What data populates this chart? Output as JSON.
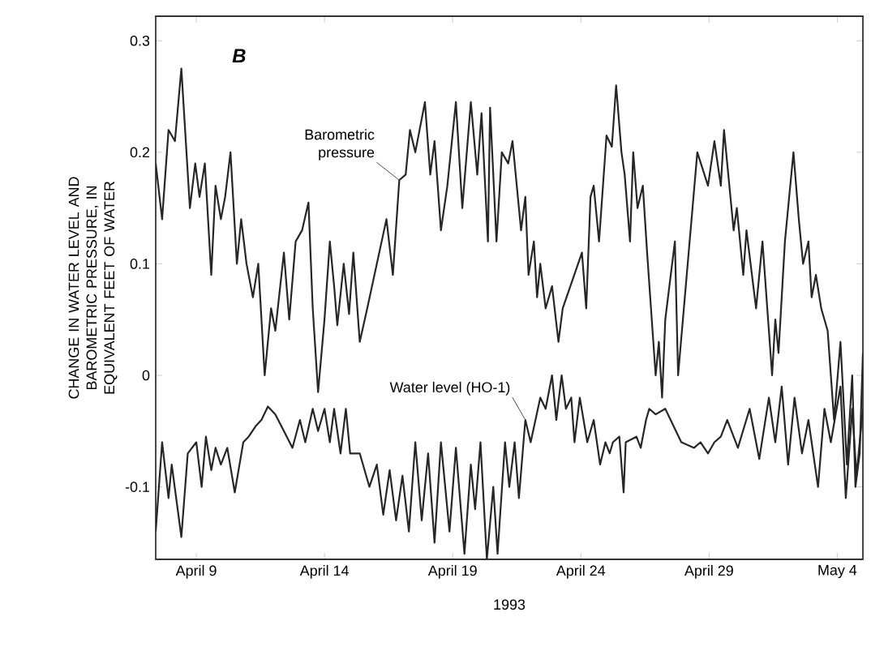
{
  "chart_data": {
    "type": "line",
    "xlabel": "1993",
    "ylabel": "CHANGE IN WATER LEVEL AND BAROMETRIC PRESSURE, IN EQUIVALENT FEET OF WATER",
    "xlim": [
      "1993-04-07T10:00",
      "1993-05-05T00:00"
    ],
    "ylim": [
      -0.165,
      0.322
    ],
    "xticks": [
      {
        "value": "1993-04-09",
        "label": "April 9"
      },
      {
        "value": "1993-04-14",
        "label": "April 14"
      },
      {
        "value": "1993-04-19",
        "label": "April 19"
      },
      {
        "value": "1993-04-24",
        "label": "April 24"
      },
      {
        "value": "1993-04-29",
        "label": "April 29"
      },
      {
        "value": "1993-05-04",
        "label": "May 4"
      }
    ],
    "yticks": [
      -0.1,
      0,
      0.1,
      0.2,
      0.3
    ],
    "marker": "none",
    "line_style": "solid",
    "annotations": [
      "B",
      {
        "text": "Barometric pressure",
        "x": "1993-04-16T22:00",
        "y": 0.175
      },
      {
        "text": "Water level (HO-1)",
        "x": "1993-04-21T20:00",
        "y": -0.04
      }
    ],
    "series": [
      {
        "color": "#262626",
        "x": [
          "1993-04-07T10:00",
          "1993-04-07T16:00",
          "1993-04-07T22:00",
          "1993-04-08T04:00",
          "1993-04-08T10:00",
          "1993-04-08T18:00",
          "1993-04-08T23:00",
          "1993-04-09T03:00",
          "1993-04-09T08:00",
          "1993-04-09T14:00",
          "1993-04-09T18:00",
          "1993-04-09T23:00",
          "1993-04-10T03:00",
          "1993-04-10T08:00",
          "1993-04-10T14:00",
          "1993-04-10T18:00",
          "1993-04-10T23:00",
          "1993-04-11T05:00",
          "1993-04-11T10:00",
          "1993-04-11T16:00",
          "1993-04-11T22:00",
          "1993-04-12T02:00",
          "1993-04-12T10:00",
          "1993-04-12T15:00",
          "1993-04-12T21:00",
          "1993-04-13T03:00",
          "1993-04-13T09:00",
          "1993-04-13T13:00",
          "1993-04-13T18:00",
          "1993-04-14T00:00",
          "1993-04-14T05:00",
          "1993-04-14T09:00",
          "1993-04-14T12:00",
          "1993-04-14T18:00",
          "1993-04-14T23:00",
          "1993-04-15T03:00",
          "1993-04-15T09:00",
          "1993-04-15T16:00",
          "1993-04-16T10:00",
          "1993-04-16T16:00",
          "1993-04-16T22:00",
          "1993-04-17T04:00",
          "1993-04-17T08:00",
          "1993-04-17T13:00",
          "1993-04-17T22:00",
          "1993-04-18T03:00",
          "1993-04-18T07:00",
          "1993-04-18T13:00",
          "1993-04-18T19:00",
          "1993-04-19T03:00",
          "1993-04-19T09:00",
          "1993-04-19T17:00",
          "1993-04-19T23:00",
          "1993-04-20T03:00",
          "1993-04-20T09:00",
          "1993-04-20T11:00",
          "1993-04-20T17:00",
          "1993-04-20T22:00",
          "1993-04-21T04:00",
          "1993-04-21T08:00",
          "1993-04-21T16:00",
          "1993-04-21T20:00",
          "1993-04-21T23:00",
          "1993-04-22T04:00",
          "1993-04-22T07:00",
          "1993-04-22T10:00",
          "1993-04-22T15:00",
          "1993-04-22T21:00",
          "1993-04-23T03:00",
          "1993-04-23T07:00",
          "1993-04-24T01:00",
          "1993-04-24T05:00",
          "1993-04-24T09:00",
          "1993-04-24T12:00",
          "1993-04-24T17:00",
          "1993-04-25T00:00",
          "1993-04-25T05:00",
          "1993-04-25T09:00",
          "1993-04-25T14:00",
          "1993-04-25T17:00",
          "1993-04-25T22:00",
          "1993-04-26T01:00",
          "1993-04-26T05:00",
          "1993-04-26T10:00",
          "1993-04-26T14:00",
          "1993-04-26T22:00",
          "1993-04-27T01:00",
          "1993-04-27T04:00",
          "1993-04-27T07:00",
          "1993-04-27T16:00",
          "1993-04-27T19:00",
          "1993-04-28T04:00",
          "1993-04-28T13:00",
          "1993-04-28T23:00",
          "1993-04-29T05:00",
          "1993-04-29T11:00",
          "1993-04-29T14:00",
          "1993-04-29T23:00",
          "1993-04-30T02:00",
          "1993-04-30T08:00",
          "1993-04-30T11:00",
          "1993-04-30T20:00",
          "1993-05-01T02:00",
          "1993-05-01T11:00",
          "1993-05-01T14:00",
          "1993-05-01T17:00",
          "1993-05-01T23:00",
          "1993-05-02T07:00",
          "1993-05-02T12:00",
          "1993-05-02T16:00",
          "1993-05-02T21:00",
          "1993-05-03T00:00",
          "1993-05-03T04:00",
          "1993-05-03T09:00",
          "1993-05-03T15:00",
          "1993-05-03T21:00",
          "1993-05-04T03:00",
          "1993-05-04T09:00",
          "1993-05-04T14:00",
          "1993-05-04T17:00",
          "1993-05-04T21:00",
          "1993-05-05T00:00"
        ],
        "values": [
          0.19,
          0.14,
          0.22,
          0.21,
          0.275,
          0.15,
          0.19,
          0.16,
          0.19,
          0.09,
          0.17,
          0.14,
          0.16,
          0.2,
          0.1,
          0.14,
          0.1,
          0.07,
          0.1,
          0.0,
          0.06,
          0.04,
          0.11,
          0.05,
          0.12,
          0.13,
          0.155,
          0.06,
          -0.015,
          0.05,
          0.12,
          0.08,
          0.045,
          0.1,
          0.055,
          0.11,
          0.03,
          0.06,
          0.14,
          0.09,
          0.175,
          0.18,
          0.22,
          0.2,
          0.245,
          0.18,
          0.21,
          0.13,
          0.17,
          0.245,
          0.15,
          0.245,
          0.18,
          0.235,
          0.12,
          0.24,
          0.12,
          0.2,
          0.19,
          0.21,
          0.13,
          0.16,
          0.09,
          0.12,
          0.07,
          0.1,
          0.06,
          0.08,
          0.03,
          0.06,
          0.11,
          0.06,
          0.16,
          0.17,
          0.12,
          0.215,
          0.205,
          0.26,
          0.2,
          0.18,
          0.12,
          0.2,
          0.15,
          0.17,
          0.11,
          0.0,
          0.03,
          -0.02,
          0.05,
          0.12,
          0.0,
          0.1,
          0.2,
          0.17,
          0.21,
          0.17,
          0.22,
          0.13,
          0.15,
          0.09,
          0.13,
          0.06,
          0.12,
          0.0,
          0.05,
          0.02,
          0.12,
          0.2,
          0.14,
          0.1,
          0.12,
          0.07,
          0.09,
          0.06,
          0.04,
          -0.04,
          0.03,
          -0.08,
          0.0,
          -0.1,
          -0.07,
          0.02
        ]
      },
      {
        "color": "#262626",
        "x": [
          "1993-04-07T10:00",
          "1993-04-07T16:00",
          "1993-04-07T22:00",
          "1993-04-08T01:00",
          "1993-04-08T10:00",
          "1993-04-08T16:00",
          "1993-04-09T00:00",
          "1993-04-09T05:00",
          "1993-04-09T09:00",
          "1993-04-09T14:00",
          "1993-04-09T18:00",
          "1993-04-09T23:00",
          "1993-04-10T05:00",
          "1993-04-10T12:00",
          "1993-04-10T20:00",
          "1993-04-11T01:00",
          "1993-04-11T08:00",
          "1993-04-11T13:00",
          "1993-04-11T19:00",
          "1993-04-12T02:00",
          "1993-04-12T10:00",
          "1993-04-12T18:00",
          "1993-04-13T01:00",
          "1993-04-13T06:00",
          "1993-04-13T13:00",
          "1993-04-13T18:00",
          "1993-04-14T00:00",
          "1993-04-14T05:00",
          "1993-04-14T09:00",
          "1993-04-14T15:00",
          "1993-04-14T20:00",
          "1993-04-15T00:00",
          "1993-04-15T09:00",
          "1993-04-15T18:00",
          "1993-04-16T01:00",
          "1993-04-16T07:00",
          "1993-04-16T13:00",
          "1993-04-16T19:00",
          "1993-04-17T01:00",
          "1993-04-17T07:00",
          "1993-04-17T13:00",
          "1993-04-17T19:00",
          "1993-04-18T01:00",
          "1993-04-18T07:00",
          "1993-04-18T13:00",
          "1993-04-18T21:00",
          "1993-04-19T03:00",
          "1993-04-19T11:00",
          "1993-04-19T17:00",
          "1993-04-19T21:00",
          "1993-04-20T02:00",
          "1993-04-20T08:00",
          "1993-04-20T14:00",
          "1993-04-20T18:00",
          "1993-04-21T01:00",
          "1993-04-21T05:00",
          "1993-04-21T10:00",
          "1993-04-21T14:00",
          "1993-04-21T20:00",
          "1993-04-22T01:00",
          "1993-04-22T10:00",
          "1993-04-22T15:00",
          "1993-04-22T21:00",
          "1993-04-23T01:00",
          "1993-04-23T06:00",
          "1993-04-23T10:00",
          "1993-04-23T15:00",
          "1993-04-23T18:00",
          "1993-04-23T23:00",
          "1993-04-24T06:00",
          "1993-04-24T12:00",
          "1993-04-24T18:00",
          "1993-04-24T23:00",
          "1993-04-25T03:00",
          "1993-04-25T06:00",
          "1993-04-25T12:00",
          "1993-04-25T16:00",
          "1993-04-25T18:00",
          "1993-04-26T04:00",
          "1993-04-26T08:00",
          "1993-04-26T13:00",
          "1993-04-26T16:00",
          "1993-04-26T22:00",
          "1993-04-27T07:00",
          "1993-04-27T22:00",
          "1993-04-28T10:00",
          "1993-04-28T16:00",
          "1993-04-28T23:00",
          "1993-04-29T05:00",
          "1993-04-29T11:00",
          "1993-04-29T17:00",
          "1993-04-30T03:00",
          "1993-04-30T14:00",
          "1993-04-30T23:00",
          "1993-05-01T08:00",
          "1993-05-01T14:00",
          "1993-05-01T20:00",
          "1993-05-02T02:00",
          "1993-05-02T08:00",
          "1993-05-02T15:00",
          "1993-05-02T21:00",
          "1993-05-03T06:00",
          "1993-05-03T12:00",
          "1993-05-03T18:00",
          "1993-05-04T03:00",
          "1993-05-04T08:00",
          "1993-05-04T14:00",
          "1993-05-04T18:00",
          "1993-05-05T00:00"
        ],
        "values": [
          -0.14,
          -0.06,
          -0.11,
          -0.08,
          -0.145,
          -0.07,
          -0.06,
          -0.1,
          -0.055,
          -0.085,
          -0.065,
          -0.08,
          -0.065,
          -0.105,
          -0.06,
          -0.055,
          -0.045,
          -0.04,
          -0.028,
          -0.035,
          -0.05,
          -0.065,
          -0.04,
          -0.06,
          -0.03,
          -0.05,
          -0.03,
          -0.06,
          -0.03,
          -0.07,
          -0.03,
          -0.07,
          -0.07,
          -0.1,
          -0.08,
          -0.125,
          -0.085,
          -0.13,
          -0.09,
          -0.14,
          -0.06,
          -0.13,
          -0.07,
          -0.15,
          -0.06,
          -0.14,
          -0.065,
          -0.16,
          -0.08,
          -0.12,
          -0.06,
          -0.165,
          -0.1,
          -0.16,
          -0.06,
          -0.1,
          -0.06,
          -0.11,
          -0.04,
          -0.06,
          -0.02,
          -0.03,
          0.0,
          -0.04,
          0.0,
          -0.03,
          -0.02,
          -0.06,
          -0.02,
          -0.06,
          -0.04,
          -0.08,
          -0.06,
          -0.07,
          -0.06,
          -0.055,
          -0.105,
          -0.06,
          -0.055,
          -0.065,
          -0.04,
          -0.03,
          -0.035,
          -0.03,
          -0.06,
          -0.065,
          -0.06,
          -0.07,
          -0.06,
          -0.055,
          -0.04,
          -0.065,
          -0.03,
          -0.075,
          -0.02,
          -0.06,
          -0.01,
          -0.08,
          -0.02,
          -0.07,
          -0.04,
          -0.1,
          -0.03,
          -0.06,
          -0.01,
          -0.11,
          -0.03,
          -0.09,
          -0.03
        ]
      }
    ]
  }
}
